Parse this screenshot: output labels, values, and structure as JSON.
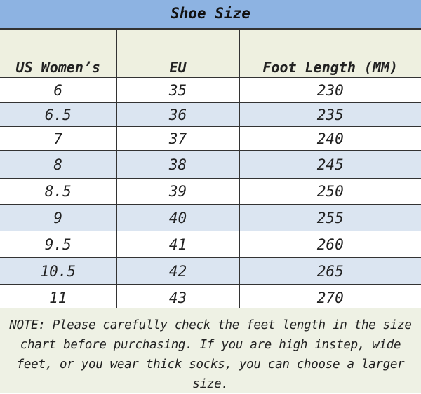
{
  "title": "Shoe Size",
  "headers": [
    "US Women’s",
    "EU",
    "Foot Length (MM)"
  ],
  "rows": [
    [
      "6",
      "35",
      "230"
    ],
    [
      "6.5",
      "36",
      "235"
    ],
    [
      "7",
      "37",
      "240"
    ],
    [
      "8",
      "38",
      "245"
    ],
    [
      "8.5",
      "39",
      "250"
    ],
    [
      "9",
      "40",
      "255"
    ],
    [
      "9.5",
      "41",
      "260"
    ],
    [
      "10.5",
      "42",
      "265"
    ],
    [
      "11",
      "43",
      "270"
    ]
  ],
  "note": "NOTE: Please carefully check the feet length in the size chart before purchasing. If you are high instep, wide feet, or you wear thick socks, you can choose a larger size.",
  "colors": {
    "title_bg": "#8db3e2",
    "alt_row": "#dbe5f1",
    "header_bg": "#eef0e0"
  }
}
